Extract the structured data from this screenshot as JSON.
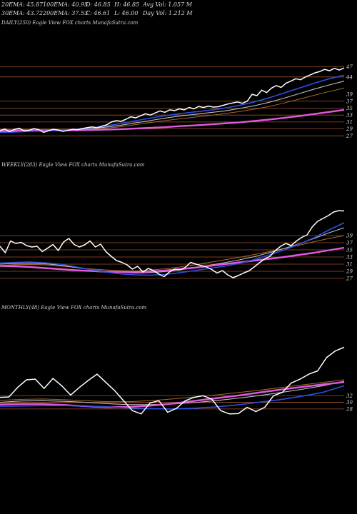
{
  "header": {
    "row1": [
      "20EMA: 45.87",
      "100EMA: 40.95",
      "O: 46.85",
      "H: 46.85",
      "Avg Vol: 1.057 M"
    ],
    "row2": [
      "30EMA: 43.72",
      "200EMA: 37.53",
      "C: 46.61",
      "L: 46.00",
      "Day Vol: 1.212 M"
    ]
  },
  "colors": {
    "background": "#000000",
    "price": "#ffffff",
    "ema_fast": "#2e4fe0",
    "ema_mid": "#c0c0c0",
    "ema_slow": "#a06a2a",
    "ema_long": "#e05ae0",
    "hline": "#a0522d"
  },
  "chart_data": [
    {
      "type": "line",
      "title": "DAILY(250) Eagle  View  FOX  charts MunafaSutra.com",
      "ylim": [
        25,
        48.5
      ],
      "yticks": [
        {
          "label": "47",
          "value": 47
        },
        {
          "label": "44",
          "value": 44
        },
        {
          "label": "39",
          "value": 39
        },
        {
          "label": "37",
          "value": 37
        },
        {
          "label": "35",
          "value": 35
        },
        {
          "label": "33",
          "value": 33
        },
        {
          "label": "31",
          "value": 31
        },
        {
          "label": "29",
          "value": 29
        },
        {
          "label": "27",
          "value": 27
        }
      ],
      "hlines": [
        47,
        44,
        37,
        35,
        33,
        31,
        29,
        27
      ],
      "series": [
        {
          "role": "price",
          "values": [
            28.5,
            29.0,
            28.2,
            28.9,
            29.2,
            28.4,
            28.6,
            29.1,
            28.8,
            28.0,
            28.5,
            28.9,
            28.7,
            28.3,
            28.6,
            28.9,
            28.8,
            29.1,
            29.4,
            29.6,
            29.3,
            29.8,
            30.2,
            31.0,
            31.4,
            31.2,
            31.8,
            32.5,
            32.2,
            32.8,
            33.4,
            33.0,
            33.6,
            34.2,
            33.8,
            34.5,
            34.3,
            34.8,
            34.5,
            35.2,
            34.8,
            35.5,
            35.2,
            35.6,
            35.3,
            35.4,
            35.8,
            36.2,
            36.5,
            36.8,
            36.4,
            37.0,
            39.0,
            38.6,
            40.2,
            39.5,
            40.8,
            41.5,
            41.0,
            42.2,
            42.8,
            43.5,
            43.2,
            44.0,
            44.6,
            45.2,
            45.6,
            46.2,
            45.8,
            46.5,
            46.0,
            46.6
          ]
        },
        {
          "role": "ema_fast",
          "values": [
            28.0,
            28.1,
            28.3,
            28.4,
            28.6,
            28.9,
            29.3,
            29.8,
            30.5,
            31.3,
            32.1,
            32.8,
            33.4,
            33.9,
            34.4,
            35.0,
            35.8,
            36.8,
            38.0,
            39.4,
            40.8,
            42.2,
            43.5,
            44.5
          ]
        },
        {
          "role": "ema_mid",
          "values": [
            28.2,
            28.3,
            28.4,
            28.5,
            28.6,
            28.8,
            29.1,
            29.5,
            30.0,
            30.7,
            31.4,
            32.1,
            32.7,
            33.2,
            33.7,
            34.2,
            34.9,
            35.7,
            36.7,
            37.9,
            39.2,
            40.5,
            41.7,
            42.8
          ]
        },
        {
          "role": "ema_slow",
          "values": [
            28.3,
            28.3,
            28.4,
            28.5,
            28.6,
            28.7,
            28.9,
            29.2,
            29.6,
            30.2,
            30.8,
            31.4,
            31.9,
            32.4,
            32.9,
            33.4,
            34.0,
            34.7,
            35.5,
            36.5,
            37.6,
            38.7,
            39.8,
            40.8
          ]
        },
        {
          "role": "ema_long",
          "values": [
            28.6,
            28.6,
            28.6,
            28.6,
            28.6,
            28.6,
            28.7,
            28.8,
            28.9,
            29.1,
            29.3,
            29.5,
            29.8,
            30.0,
            30.3,
            30.6,
            30.9,
            31.3,
            31.7,
            32.2,
            32.7,
            33.3,
            33.9,
            34.5
          ]
        }
      ]
    },
    {
      "type": "line",
      "title": "WEEKLY(283) Eagle  View  FOX  charts MunafaSutra.com",
      "ylim": [
        25,
        47
      ],
      "yticks": [
        {
          "label": "39",
          "value": 39
        },
        {
          "label": "37",
          "value": 37
        },
        {
          "label": "35",
          "value": 35
        },
        {
          "label": "33",
          "value": 33
        },
        {
          "label": "31",
          "value": 31
        },
        {
          "label": "29",
          "value": 29
        },
        {
          "label": "27",
          "value": 27
        }
      ],
      "hlines": [
        39,
        37,
        35,
        33,
        31,
        29,
        27
      ],
      "series": [
        {
          "role": "price",
          "values": [
            36.0,
            34.2,
            37.5,
            36.8,
            37.1,
            36.2,
            35.8,
            36.0,
            34.5,
            35.5,
            36.5,
            34.8,
            37.2,
            38.2,
            36.5,
            35.8,
            36.4,
            37.5,
            35.8,
            36.6,
            34.5,
            33.2,
            32.0,
            31.5,
            30.8,
            29.6,
            30.4,
            28.8,
            29.8,
            29.2,
            28.2,
            27.5,
            28.8,
            29.6,
            29.4,
            30.1,
            31.5,
            31.0,
            30.6,
            30.2,
            29.5,
            28.5,
            29.2,
            28.0,
            27.2,
            27.8,
            28.5,
            29.1,
            30.2,
            31.4,
            32.5,
            33.2,
            34.8,
            36.0,
            36.8,
            36.2,
            37.5,
            38.5,
            39.2,
            41.5,
            43.0,
            43.8,
            44.6,
            45.6,
            46.0,
            45.9
          ]
        },
        {
          "role": "ema_fast",
          "values": [
            31.3,
            31.5,
            31.6,
            31.4,
            31.0,
            30.3,
            29.5,
            28.8,
            28.3,
            28.0,
            27.9,
            28.1,
            28.6,
            29.2,
            29.8,
            30.4,
            31.2,
            32.3,
            33.6,
            35.0,
            36.6,
            38.4,
            40.6,
            42.6
          ]
        },
        {
          "role": "ema_mid",
          "values": [
            31.0,
            31.2,
            31.3,
            31.1,
            30.7,
            30.1,
            29.5,
            29.0,
            28.7,
            28.5,
            28.6,
            28.9,
            29.4,
            30.0,
            30.7,
            31.4,
            32.2,
            33.1,
            34.2,
            35.4,
            36.7,
            38.2,
            39.8,
            41.2
          ]
        },
        {
          "role": "ema_slow",
          "values": [
            30.6,
            30.8,
            30.9,
            30.8,
            30.5,
            30.1,
            29.7,
            29.4,
            29.2,
            29.1,
            29.3,
            29.7,
            30.2,
            30.8,
            31.5,
            32.2,
            32.9,
            33.7,
            34.5,
            35.4,
            36.3,
            37.3,
            38.2,
            39.0
          ]
        },
        {
          "role": "ema_long",
          "values": [
            30.5,
            30.4,
            30.2,
            29.9,
            29.6,
            29.3,
            29.1,
            28.9,
            28.8,
            28.8,
            28.9,
            29.2,
            29.6,
            30.0,
            30.5,
            31.0,
            31.5,
            32.0,
            32.5,
            33.0,
            33.6,
            34.2,
            34.9,
            35.6
          ]
        }
      ]
    },
    {
      "type": "line",
      "title": "MONTHLY(48) Eagle  View  FOX  charts MunafaSutra.com",
      "ylim": [
        20,
        48
      ],
      "yticks": [
        {
          "label": "32",
          "value": 32
        },
        {
          "label": "30",
          "value": 30
        },
        {
          "label": "28",
          "value": 28
        }
      ],
      "hlines": [
        32,
        30,
        28
      ],
      "series": [
        {
          "role": "price",
          "values": [
            31.5,
            31.6,
            34.5,
            36.8,
            37.0,
            34.2,
            37.2,
            35.0,
            32.2,
            34.5,
            36.6,
            38.5,
            36.0,
            33.5,
            30.5,
            27.5,
            26.5,
            29.8,
            30.5,
            27.0,
            28.2,
            30.5,
            31.5,
            32.0,
            31.0,
            27.5,
            26.5,
            26.6,
            28.5,
            27.2,
            28.5,
            32.0,
            33.0,
            35.8,
            37.0,
            38.5,
            39.5,
            43.5,
            45.5,
            46.6
          ]
        },
        {
          "role": "ema_fast",
          "values": [
            28.8,
            28.9,
            29.0,
            29.0,
            28.9,
            28.6,
            28.3,
            28.1,
            28.0,
            28.2,
            28.6,
            29.2,
            30.0,
            30.8,
            31.8,
            33.0,
            35.0
          ]
        },
        {
          "role": "ema_mid",
          "values": [
            30.0,
            30.4,
            30.5,
            30.3,
            30.0,
            29.6,
            29.3,
            29.3,
            29.5,
            29.9,
            30.5,
            31.2,
            32.0,
            32.9,
            33.9,
            35.0,
            36.4
          ]
        },
        {
          "role": "ema_slow",
          "values": [
            30.6,
            30.9,
            31.0,
            30.8,
            30.5,
            30.2,
            30.2,
            30.5,
            31.0,
            31.6,
            32.2,
            32.9,
            33.6,
            34.4,
            35.2,
            36.0,
            36.8
          ]
        },
        {
          "role": "ema_long",
          "values": [
            29.4,
            29.5,
            29.5,
            29.2,
            28.8,
            28.5,
            28.6,
            29.0,
            29.6,
            30.4,
            31.2,
            32.0,
            32.9,
            33.8,
            34.6,
            35.4,
            36.1
          ]
        }
      ]
    }
  ]
}
